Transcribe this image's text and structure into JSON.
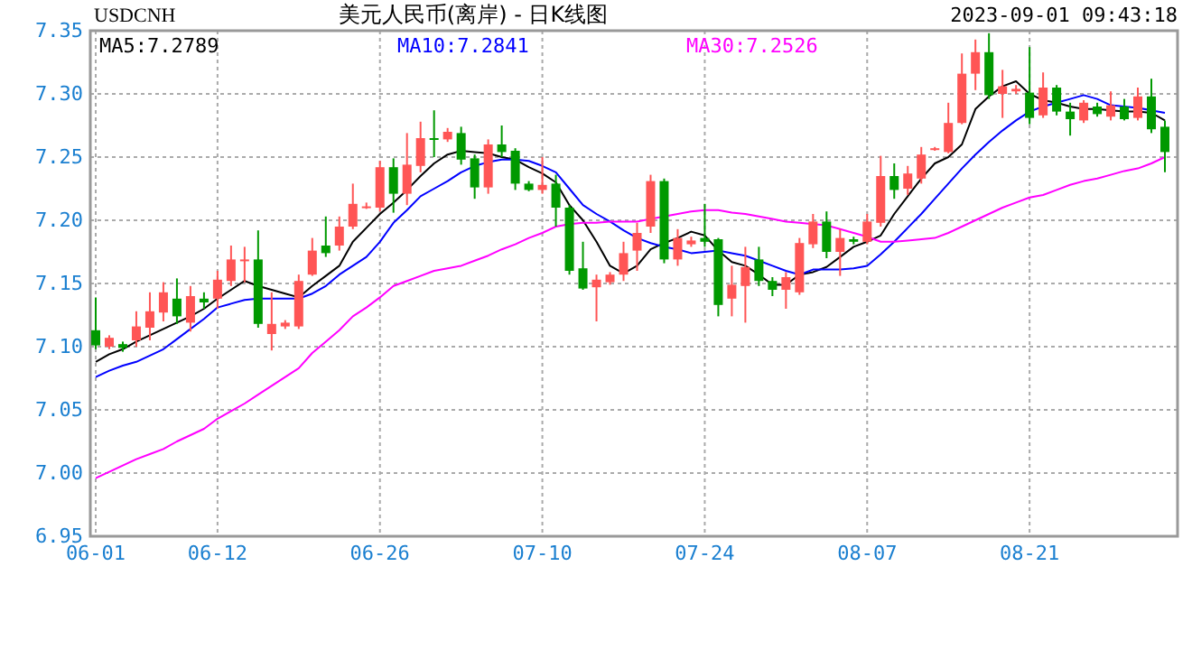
{
  "chart_data": {
    "type": "candlestick",
    "title": "美元人民币(离岸) - 日K线图",
    "annotations": [
      "USDCNH",
      "2023-09-01 09:43:18"
    ],
    "categories": [
      "06-01",
      null,
      null,
      null,
      null,
      null,
      null,
      null,
      null,
      "06-12",
      null,
      null,
      null,
      null,
      null,
      null,
      null,
      null,
      null,
      null,
      null,
      "06-26",
      null,
      null,
      null,
      null,
      null,
      null,
      null,
      null,
      null,
      null,
      null,
      "07-10",
      null,
      null,
      null,
      null,
      null,
      null,
      null,
      null,
      null,
      null,
      null,
      "07-24",
      null,
      null,
      null,
      null,
      null,
      null,
      null,
      null,
      null,
      null,
      null,
      "08-07",
      null,
      null,
      null,
      null,
      null,
      null,
      null,
      null,
      null,
      null,
      null,
      "08-21",
      null,
      null,
      null,
      null,
      null,
      null,
      null,
      null,
      null,
      null
    ],
    "ohlc": [
      [
        7.113,
        7.139,
        7.098,
        7.101
      ],
      [
        7.1,
        7.109,
        7.098,
        7.107
      ],
      [
        7.102,
        7.104,
        7.096,
        7.099
      ],
      [
        7.105,
        7.128,
        7.1,
        7.116
      ],
      [
        7.115,
        7.143,
        7.105,
        7.128
      ],
      [
        7.127,
        7.151,
        7.12,
        7.143
      ],
      [
        7.138,
        7.154,
        7.118,
        7.124
      ],
      [
        7.119,
        7.148,
        7.112,
        7.14
      ],
      [
        7.138,
        7.143,
        7.13,
        7.135
      ],
      [
        7.138,
        7.16,
        7.13,
        7.153
      ],
      [
        7.152,
        7.18,
        7.148,
        7.169
      ],
      [
        7.168,
        7.179,
        7.151,
        7.169
      ],
      [
        7.169,
        7.192,
        7.115,
        7.118
      ],
      [
        7.11,
        7.143,
        7.097,
        7.118
      ],
      [
        7.116,
        7.121,
        7.114,
        7.119
      ],
      [
        7.116,
        7.157,
        7.114,
        7.152
      ],
      [
        7.157,
        7.186,
        7.156,
        7.176
      ],
      [
        7.18,
        7.203,
        7.171,
        7.174
      ],
      [
        7.18,
        7.203,
        7.176,
        7.195
      ],
      [
        7.195,
        7.229,
        7.193,
        7.213
      ],
      [
        7.21,
        7.214,
        7.209,
        7.211
      ],
      [
        7.21,
        7.247,
        7.207,
        7.242
      ],
      [
        7.242,
        7.249,
        7.206,
        7.221
      ],
      [
        7.221,
        7.269,
        7.212,
        7.244
      ],
      [
        7.243,
        7.278,
        7.238,
        7.265
      ],
      [
        7.265,
        7.287,
        7.25,
        7.264
      ],
      [
        7.264,
        7.273,
        7.262,
        7.27
      ],
      [
        7.269,
        7.274,
        7.244,
        7.248
      ],
      [
        7.249,
        7.252,
        7.217,
        7.226
      ],
      [
        7.226,
        7.264,
        7.221,
        7.26
      ],
      [
        7.26,
        7.275,
        7.25,
        7.254
      ],
      [
        7.255,
        7.257,
        7.224,
        7.229
      ],
      [
        7.229,
        7.231,
        7.223,
        7.224
      ],
      [
        7.224,
        7.25,
        7.221,
        7.228
      ],
      [
        7.229,
        7.236,
        7.195,
        7.21
      ],
      [
        7.21,
        7.212,
        7.157,
        7.16
      ],
      [
        7.162,
        7.183,
        7.145,
        7.146
      ],
      [
        7.147,
        7.157,
        7.12,
        7.153
      ],
      [
        7.151,
        7.159,
        7.149,
        7.157
      ],
      [
        7.157,
        7.183,
        7.152,
        7.174
      ],
      [
        7.176,
        7.198,
        7.16,
        7.19
      ],
      [
        7.195,
        7.236,
        7.19,
        7.231
      ],
      [
        7.231,
        7.233,
        7.166,
        7.169
      ],
      [
        7.169,
        7.193,
        7.164,
        7.186
      ],
      [
        7.181,
        7.187,
        7.179,
        7.184
      ],
      [
        7.186,
        7.213,
        7.179,
        7.183
      ],
      [
        7.185,
        7.186,
        7.124,
        7.133
      ],
      [
        7.138,
        7.164,
        7.124,
        7.149
      ],
      [
        7.148,
        7.179,
        7.119,
        7.163
      ],
      [
        7.169,
        7.179,
        7.148,
        7.152
      ],
      [
        7.152,
        7.155,
        7.14,
        7.145
      ],
      [
        7.145,
        7.159,
        7.13,
        7.155
      ],
      [
        7.143,
        7.186,
        7.141,
        7.182
      ],
      [
        7.181,
        7.205,
        7.178,
        7.199
      ],
      [
        7.199,
        7.207,
        7.17,
        7.175
      ],
      [
        7.175,
        7.193,
        7.156,
        7.186
      ],
      [
        7.185,
        7.187,
        7.181,
        7.183
      ],
      [
        7.183,
        7.205,
        7.181,
        7.199
      ],
      [
        7.198,
        7.251,
        7.195,
        7.235
      ],
      [
        7.235,
        7.245,
        7.217,
        7.224
      ],
      [
        7.225,
        7.243,
        7.22,
        7.237
      ],
      [
        7.233,
        7.258,
        7.229,
        7.252
      ],
      [
        7.256,
        7.258,
        7.255,
        7.257
      ],
      [
        7.254,
        7.293,
        7.253,
        7.277
      ],
      [
        7.277,
        7.332,
        7.276,
        7.316
      ],
      [
        7.316,
        7.343,
        7.303,
        7.333
      ],
      [
        7.333,
        7.348,
        7.296,
        7.299
      ],
      [
        7.3,
        7.319,
        7.281,
        7.306
      ],
      [
        7.302,
        7.307,
        7.3,
        7.304
      ],
      [
        7.301,
        7.337,
        7.276,
        7.281
      ],
      [
        7.283,
        7.317,
        7.281,
        7.305
      ],
      [
        7.305,
        7.307,
        7.283,
        7.286
      ],
      [
        7.286,
        7.293,
        7.267,
        7.28
      ],
      [
        7.279,
        7.295,
        7.277,
        7.293
      ],
      [
        7.29,
        7.293,
        7.282,
        7.284
      ],
      [
        7.282,
        7.302,
        7.279,
        7.291
      ],
      [
        7.29,
        7.296,
        7.279,
        7.28
      ],
      [
        7.281,
        7.305,
        7.279,
        7.298
      ],
      [
        7.298,
        7.312,
        7.269,
        7.272
      ],
      [
        7.274,
        7.279,
        7.238,
        7.254
      ]
    ],
    "series": [
      {
        "name": "MA5:7.2789",
        "type": "line",
        "color": "#000000",
        "values": [
          7.088,
          7.094,
          7.098,
          7.104,
          7.109,
          7.114,
          7.119,
          7.124,
          7.13,
          7.138,
          7.145,
          7.152,
          7.148,
          7.145,
          7.142,
          7.139,
          7.148,
          7.156,
          7.164,
          7.183,
          7.194,
          7.205,
          7.214,
          7.224,
          7.235,
          7.245,
          7.252,
          7.255,
          7.254,
          7.253,
          7.25,
          7.248,
          7.242,
          7.237,
          7.23,
          7.212,
          7.2,
          7.183,
          7.164,
          7.158,
          7.164,
          7.177,
          7.182,
          7.186,
          7.191,
          7.188,
          7.176,
          7.167,
          7.164,
          7.157,
          7.149,
          7.149,
          7.157,
          7.159,
          7.163,
          7.171,
          7.179,
          7.183,
          7.188,
          7.205,
          7.219,
          7.233,
          7.245,
          7.25,
          7.26,
          7.288,
          7.298,
          7.306,
          7.31,
          7.3,
          7.295,
          7.293,
          7.29,
          7.288,
          7.288,
          7.287,
          7.286,
          7.286,
          7.285,
          7.279
        ]
      },
      {
        "name": "MA10:7.2841",
        "type": "line",
        "color": "#0000ff",
        "values": [
          7.076,
          7.081,
          7.085,
          7.088,
          7.093,
          7.098,
          7.106,
          7.114,
          7.122,
          7.131,
          7.134,
          7.137,
          7.138,
          7.138,
          7.138,
          7.138,
          7.142,
          7.148,
          7.157,
          7.164,
          7.171,
          7.183,
          7.198,
          7.208,
          7.219,
          7.225,
          7.231,
          7.238,
          7.243,
          7.246,
          7.248,
          7.248,
          7.247,
          7.243,
          7.238,
          7.225,
          7.212,
          7.205,
          7.199,
          7.192,
          7.186,
          7.182,
          7.179,
          7.177,
          7.174,
          7.175,
          7.176,
          7.174,
          7.172,
          7.168,
          7.164,
          7.16,
          7.157,
          7.161,
          7.161,
          7.161,
          7.162,
          7.164,
          7.173,
          7.183,
          7.194,
          7.205,
          7.217,
          7.229,
          7.241,
          7.252,
          7.262,
          7.271,
          7.279,
          7.286,
          7.29,
          7.293,
          7.296,
          7.299,
          7.296,
          7.291,
          7.29,
          7.289,
          7.287,
          7.285
        ]
      },
      {
        "name": "MA30:7.2526",
        "type": "line",
        "color": "#ff00ff",
        "values": [
          6.996,
          7.001,
          7.006,
          7.011,
          7.015,
          7.019,
          7.025,
          7.03,
          7.035,
          7.043,
          7.049,
          7.055,
          7.062,
          7.069,
          7.076,
          7.083,
          7.095,
          7.104,
          7.113,
          7.124,
          7.131,
          7.139,
          7.148,
          7.152,
          7.156,
          7.16,
          7.162,
          7.164,
          7.168,
          7.172,
          7.177,
          7.181,
          7.186,
          7.19,
          7.195,
          7.197,
          7.198,
          7.198,
          7.199,
          7.199,
          7.199,
          7.201,
          7.203,
          7.205,
          7.207,
          7.208,
          7.208,
          7.206,
          7.205,
          7.203,
          7.201,
          7.199,
          7.198,
          7.197,
          7.196,
          7.193,
          7.19,
          7.187,
          7.183,
          7.183,
          7.184,
          7.185,
          7.186,
          7.19,
          7.195,
          7.2,
          7.205,
          7.21,
          7.214,
          7.218,
          7.22,
          7.224,
          7.228,
          7.231,
          7.233,
          7.236,
          7.239,
          7.241,
          7.245,
          7.25
        ]
      }
    ],
    "ylim": [
      6.95,
      7.35
    ],
    "yticks": [
      6.95,
      {
        "value": 7.0,
        "label": "7.00"
      },
      7.05,
      {
        "value": 7.1,
        "label": "7.10"
      },
      7.15,
      {
        "value": 7.2,
        "label": "7.20"
      },
      7.25,
      {
        "value": 7.3,
        "label": "7.30"
      },
      7.35
    ],
    "grid": true,
    "legend": "top"
  }
}
